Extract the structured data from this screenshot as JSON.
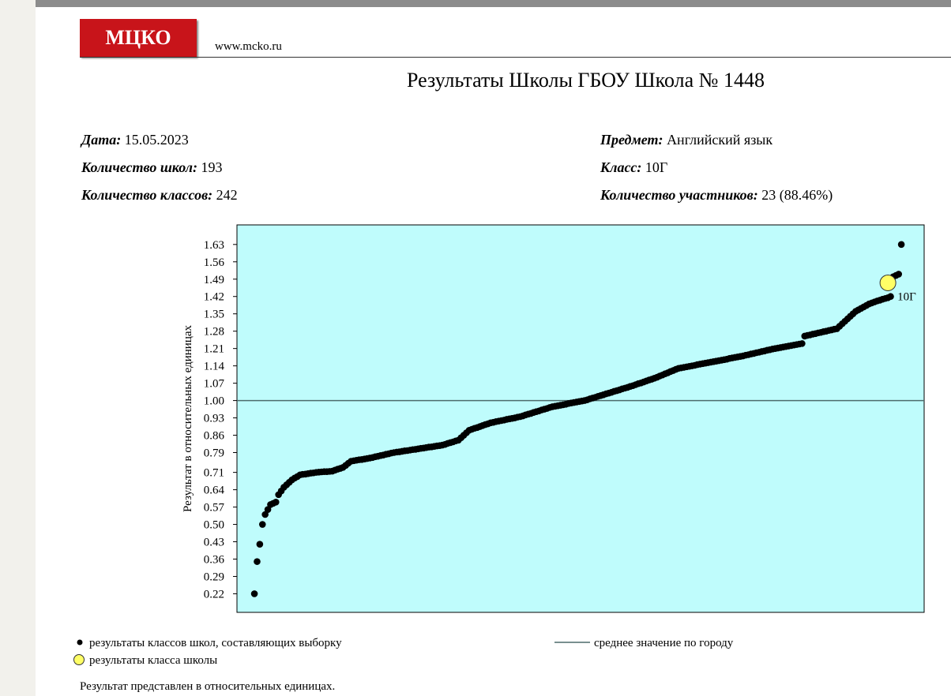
{
  "header": {
    "logo": "МЦКО",
    "url": "www.mcko.ru",
    "title": "Результаты Школы ГБОУ Школа № 1448"
  },
  "info": {
    "left": [
      {
        "label": "Дата:",
        "value": "15.05.2023"
      },
      {
        "label": "Количество школ:",
        "value": "193"
      },
      {
        "label": "Количество классов:",
        "value": "242"
      }
    ],
    "right": [
      {
        "label": "Предмет:",
        "value": "Английский язык"
      },
      {
        "label": "Класс:",
        "value": "10Г"
      },
      {
        "label": "Количество участников:",
        "value": "23 (88.46%)"
      }
    ]
  },
  "chart_data": {
    "type": "scatter",
    "ylabel": "Результат в относительных единицах",
    "xlim": [
      -6.5,
      249.5
    ],
    "ylim": [
      0.145,
      1.709
    ],
    "yticks": [
      0.22,
      0.29,
      0.36,
      0.43,
      {
        "value": 0.5,
        "label": "0.50"
      },
      0.57,
      0.64,
      0.71,
      0.79,
      0.86,
      0.93,
      {
        "value": 1,
        "label": "1.00"
      },
      1.07,
      1.14,
      1.21,
      1.28,
      1.35,
      1.42,
      1.49,
      1.56,
      1.63
    ],
    "mean": {
      "name": "среднее значение по городу",
      "value": 1,
      "color": "#4d6b6b"
    },
    "background": "#bffcfc",
    "series": [
      {
        "name": "результаты классов школ, составляющих выборку",
        "color": "#000000",
        "values": [
          0.22,
          0.35,
          0.42,
          0.5,
          0.54,
          0.56,
          0.58,
          0.585,
          0.59,
          0.62,
          0.635,
          0.65,
          0.66,
          0.67,
          0.68,
          0.687,
          0.693,
          0.7,
          0.702,
          0.703,
          0.705,
          0.707,
          0.708,
          0.71,
          0.711,
          0.712,
          0.713,
          0.713,
          0.714,
          0.715,
          0.719,
          0.723,
          0.726,
          0.73,
          0.738,
          0.747,
          0.755,
          0.757,
          0.759,
          0.761,
          0.762,
          0.764,
          0.766,
          0.768,
          0.77,
          0.773,
          0.775,
          0.778,
          0.78,
          0.783,
          0.785,
          0.788,
          0.79,
          0.792,
          0.793,
          0.795,
          0.797,
          0.798,
          0.8,
          0.802,
          0.803,
          0.805,
          0.807,
          0.808,
          0.81,
          0.812,
          0.813,
          0.815,
          0.817,
          0.818,
          0.82,
          0.823,
          0.827,
          0.83,
          0.833,
          0.837,
          0.84,
          0.85,
          0.86,
          0.87,
          0.88,
          0.884,
          0.888,
          0.891,
          0.895,
          0.899,
          0.903,
          0.906,
          0.91,
          0.912,
          0.915,
          0.917,
          0.919,
          0.921,
          0.924,
          0.926,
          0.928,
          0.93,
          0.933,
          0.935,
          0.938,
          0.942,
          0.945,
          0.948,
          0.952,
          0.955,
          0.958,
          0.962,
          0.965,
          0.968,
          0.972,
          0.975,
          0.977,
          0.979,
          0.981,
          0.983,
          0.985,
          0.988,
          0.99,
          0.992,
          0.994,
          0.996,
          0.998,
          1,
          1.003,
          1.007,
          1.01,
          1.013,
          1.017,
          1.02,
          1.023,
          1.027,
          1.03,
          1.033,
          1.037,
          1.04,
          1.043,
          1.047,
          1.05,
          1.053,
          1.057,
          1.06,
          1.064,
          1.068,
          1.071,
          1.075,
          1.079,
          1.083,
          1.086,
          1.09,
          1.094,
          1.099,
          1.103,
          1.108,
          1.112,
          1.117,
          1.121,
          1.126,
          1.13,
          1.132,
          1.134,
          1.136,
          1.138,
          1.14,
          1.142,
          1.145,
          1.147,
          1.149,
          1.151,
          1.153,
          1.155,
          1.157,
          1.159,
          1.161,
          1.163,
          1.165,
          1.167,
          1.17,
          1.172,
          1.174,
          1.176,
          1.178,
          1.18,
          1.183,
          1.185,
          1.188,
          1.19,
          1.193,
          1.195,
          1.198,
          1.2,
          1.203,
          1.205,
          1.208,
          1.21,
          1.212,
          1.214,
          1.216,
          1.218,
          1.22,
          1.222,
          1.224,
          1.226,
          1.228,
          1.23,
          1.26,
          1.263,
          1.265,
          1.268,
          1.27,
          1.273,
          1.275,
          1.278,
          1.28,
          1.283,
          1.285,
          1.288,
          1.29,
          1.3,
          1.31,
          1.32,
          1.33,
          1.34,
          1.35,
          1.36,
          1.366,
          1.372,
          1.378,
          1.384,
          1.39,
          1.394,
          1.398,
          1.402,
          1.405,
          1.409,
          1.412,
          1.415,
          1.42,
          1.5,
          1.505,
          1.51,
          1.63
        ]
      },
      {
        "name": "результаты класса школы",
        "color": "#ffff66",
        "x": [
          236
        ],
        "values": [
          1.475
        ],
        "labels": [
          "10Г"
        ]
      }
    ]
  },
  "footnote": "Результат представлен в относительных единицах."
}
